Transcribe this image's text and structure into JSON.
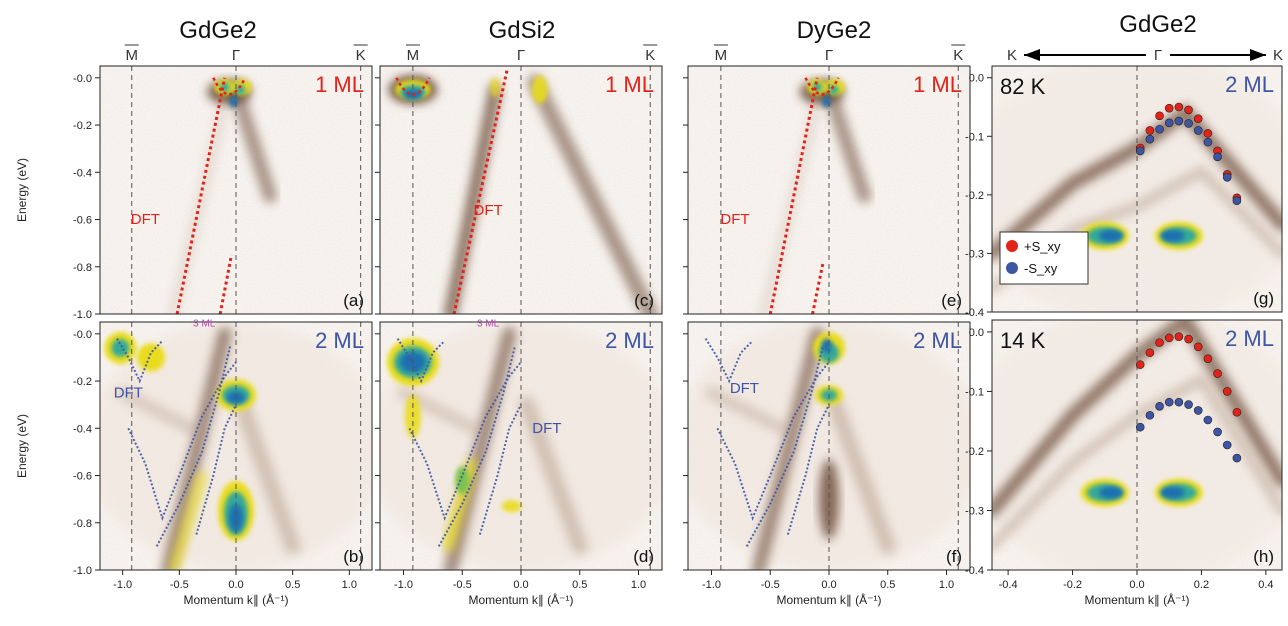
{
  "figure": {
    "column_titles": [
      "GdGe2",
      "GdSi2",
      "DyGe2",
      "GdGe2"
    ],
    "symmetry_points": {
      "m": "M",
      "g": "Γ",
      "k": "K"
    },
    "arrow_labels": [
      "K",
      "Γ",
      "K"
    ]
  },
  "colors": {
    "dft_red": "#e2231a",
    "dft_blue": "#3e55a3",
    "spin_plus": "#e2231a",
    "spin_minus": "#3e55a3",
    "arpes_colormap": [
      "#ffffff",
      "#f0e6de",
      "#b39a86",
      "#6b4a35",
      "#eadc1c",
      "#7ac24f",
      "#35a89a",
      "#1f6fb0"
    ]
  },
  "chart_data": [
    {
      "id": "a",
      "type": "heatmap",
      "material": "GdGe2",
      "coverage": "1 ML",
      "panel_letter": "(a)",
      "xlim": [
        -1.2,
        1.2
      ],
      "ylim": [
        -1.0,
        0.05
      ],
      "ylabel": "Energy (eV)",
      "xlabel": "",
      "y_ticks": [
        "-0.0",
        "-0.2",
        "-0.4",
        "-0.6",
        "-0.8",
        "-1.0"
      ],
      "vlines": [
        -0.92,
        0.0,
        1.1
      ],
      "annotations": [
        {
          "text": "DFT",
          "x": -0.8,
          "y": -0.62,
          "color": "red"
        }
      ],
      "dft_lines": [
        {
          "x": [
            -0.52,
            -0.1
          ],
          "y": [
            -1.0,
            0.0
          ]
        },
        {
          "x": [
            -0.14,
            -0.04
          ],
          "y": [
            -1.0,
            -0.75
          ]
        }
      ]
    },
    {
      "id": "c",
      "type": "heatmap",
      "material": "GdSi2",
      "coverage": "1 ML",
      "panel_letter": "(c)",
      "xlim": [
        -1.2,
        1.2
      ],
      "ylim": [
        -1.0,
        0.05
      ],
      "vlines": [
        -0.92,
        0.0,
        1.1
      ],
      "annotations": [
        {
          "text": "DFT",
          "x": -0.28,
          "y": -0.58,
          "color": "red"
        }
      ],
      "dft_lines": [
        {
          "x": [
            -0.57,
            -0.12
          ],
          "y": [
            -1.0,
            0.03
          ]
        }
      ]
    },
    {
      "id": "e",
      "type": "heatmap",
      "material": "DyGe2",
      "coverage": "1 ML",
      "panel_letter": "(e)",
      "xlim": [
        -1.2,
        1.2
      ],
      "ylim": [
        -1.0,
        0.05
      ],
      "vlines": [
        -0.92,
        0.0,
        1.1
      ],
      "annotations": [
        {
          "text": "DFT",
          "x": -0.8,
          "y": -0.62,
          "color": "red"
        }
      ],
      "dft_lines": [
        {
          "x": [
            -0.5,
            -0.1
          ],
          "y": [
            -1.0,
            0.0
          ]
        },
        {
          "x": [
            -0.14,
            -0.05
          ],
          "y": [
            -1.0,
            -0.78
          ]
        }
      ]
    },
    {
      "id": "b",
      "type": "heatmap",
      "material": "GdGe2",
      "coverage": "2 ML",
      "panel_letter": "(b)",
      "xlim": [
        -1.2,
        1.2
      ],
      "ylim": [
        -1.0,
        0.05
      ],
      "ylabel": "Energy (eV)",
      "xlabel": "Momentum k∥ (Å⁻¹)",
      "x_ticks": [
        "-1.0",
        "-0.5",
        "0.0",
        "0.5",
        "1.0"
      ],
      "y_ticks": [
        "-0.0",
        "-0.2",
        "-0.4",
        "-0.6",
        "-0.8",
        "-1.0"
      ],
      "vlines": [
        -0.92,
        0.0,
        1.1
      ],
      "annotations": [
        {
          "text": "DFT",
          "x": -0.95,
          "y": -0.27,
          "color": "blue"
        },
        {
          "text": "3 ML",
          "x": -0.28,
          "y": 0.03,
          "color": "magenta"
        }
      ]
    },
    {
      "id": "d",
      "type": "heatmap",
      "material": "GdSi2",
      "coverage": "2 ML",
      "panel_letter": "(d)",
      "xlim": [
        -1.2,
        1.2
      ],
      "ylim": [
        -1.0,
        0.05
      ],
      "xlabel": "Momentum k∥ (Å⁻¹)",
      "x_ticks": [
        "-1.0",
        "-0.5",
        "0.0",
        "0.5",
        "1.0"
      ],
      "vlines": [
        -0.92,
        0.0,
        1.1
      ],
      "annotations": [
        {
          "text": "DFT",
          "x": 0.22,
          "y": -0.42,
          "color": "blue"
        },
        {
          "text": "3 ML",
          "x": -0.28,
          "y": 0.03,
          "color": "magenta"
        }
      ]
    },
    {
      "id": "f",
      "type": "heatmap",
      "material": "DyGe2",
      "coverage": "2 ML",
      "panel_letter": "(f)",
      "xlim": [
        -1.2,
        1.2
      ],
      "ylim": [
        -1.0,
        0.05
      ],
      "xlabel": "Momentum k∥ (Å⁻¹)",
      "x_ticks": [
        "-1.0",
        "-0.5",
        "0.0",
        "0.5",
        "1.0"
      ],
      "vlines": [
        -0.92,
        0.0,
        1.1
      ],
      "annotations": [
        {
          "text": "DFT",
          "x": -0.72,
          "y": -0.25,
          "color": "blue"
        }
      ]
    },
    {
      "id": "g",
      "type": "heatmap",
      "material": "GdGe2",
      "coverage": "2 ML",
      "temperature": "82 K",
      "panel_letter": "(g)",
      "xlim": [
        -0.45,
        0.45
      ],
      "ylim": [
        -0.4,
        0.02
      ],
      "y_ticks": [
        "0.0",
        "-0.1",
        "-0.2",
        "-0.3",
        "-0.4"
      ],
      "legend": [
        "+S_xy",
        "-S_xy"
      ],
      "series": [
        {
          "name": "+S_xy",
          "x": [
            0.01,
            0.04,
            0.07,
            0.1,
            0.13,
            0.16,
            0.19,
            0.22,
            0.25,
            0.28,
            0.31
          ],
          "y": [
            -0.12,
            -0.09,
            -0.065,
            -0.052,
            -0.05,
            -0.055,
            -0.07,
            -0.095,
            -0.125,
            -0.165,
            -0.205
          ]
        },
        {
          "name": "-S_xy",
          "x": [
            0.01,
            0.04,
            0.07,
            0.1,
            0.13,
            0.16,
            0.19,
            0.22,
            0.25,
            0.28,
            0.31
          ],
          "y": [
            -0.125,
            -0.105,
            -0.088,
            -0.077,
            -0.074,
            -0.078,
            -0.09,
            -0.11,
            -0.135,
            -0.17,
            -0.21
          ]
        }
      ]
    },
    {
      "id": "h",
      "type": "heatmap",
      "material": "GdGe2",
      "coverage": "2 ML",
      "temperature": "14 K",
      "panel_letter": "(h)",
      "xlim": [
        -0.45,
        0.45
      ],
      "ylim": [
        -0.4,
        0.02
      ],
      "xlabel": "Momentum k∥ (Å⁻¹)",
      "x_ticks": [
        "-0.4",
        "-0.2",
        "0.0",
        "0.2",
        "0.4"
      ],
      "y_ticks": [
        "0.0",
        "-0.1",
        "-0.2",
        "-0.3",
        "-0.4"
      ],
      "series": [
        {
          "name": "+S_xy",
          "x": [
            0.01,
            0.04,
            0.07,
            0.1,
            0.13,
            0.16,
            0.19,
            0.22,
            0.25,
            0.28,
            0.31
          ],
          "y": [
            -0.055,
            -0.035,
            -0.018,
            -0.01,
            -0.008,
            -0.012,
            -0.025,
            -0.045,
            -0.07,
            -0.1,
            -0.135
          ]
        },
        {
          "name": "-S_xy",
          "x": [
            0.01,
            0.04,
            0.07,
            0.1,
            0.13,
            0.16,
            0.19,
            0.22,
            0.25,
            0.28,
            0.31
          ],
          "y": [
            -0.16,
            -0.14,
            -0.125,
            -0.118,
            -0.118,
            -0.122,
            -0.132,
            -0.148,
            -0.168,
            -0.19,
            -0.212
          ]
        }
      ]
    }
  ]
}
